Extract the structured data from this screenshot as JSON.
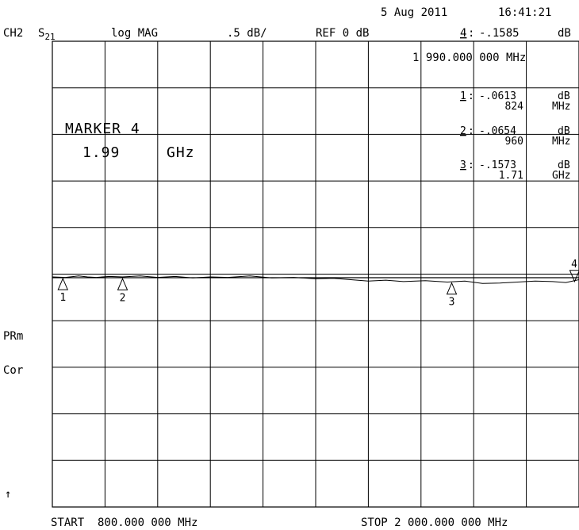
{
  "header": {
    "date": "5 Aug 2011",
    "time": "16:41:21",
    "channel": "CH2",
    "param_letter": "S",
    "param_sub": "21",
    "format": "log MAG",
    "scale": ".5 dB/",
    "ref": "REF 0 dB",
    "active_marker_num": "4",
    "active_marker_value": "-.1585",
    "active_marker_unit": "dB",
    "active_marker_freq": "1 990.000 000 MHz"
  },
  "marker_readouts": [
    {
      "num": "1",
      "value": "-.0613",
      "value_unit": "dB",
      "freq": "824",
      "freq_unit": "MHz"
    },
    {
      "num": "2",
      "value": "-.0654",
      "value_unit": "dB",
      "freq": "960",
      "freq_unit": "MHz"
    },
    {
      "num": "3",
      "value": "-.1573",
      "value_unit": "dB",
      "freq": "1.71",
      "freq_unit": "GHz"
    }
  ],
  "marker_box": {
    "title": "MARKER 4",
    "value": "1.99",
    "unit": "GHz"
  },
  "annotations": {
    "prm": "PRm",
    "cor": "Cor",
    "arrow": "↑"
  },
  "footer": {
    "start": "START  800.000 000 MHz",
    "stop": "STOP 2 000.000 000 MHz"
  },
  "chart_data": {
    "type": "line",
    "xlim": [
      800,
      2000
    ],
    "ylim": [
      -5,
      5
    ],
    "x_unit": "MHz",
    "y_unit": "dB",
    "grid": true,
    "reference_level": 0,
    "series": [
      {
        "x": [
          800,
          830,
          860,
          880,
          900,
          930,
          960,
          1000,
          1040,
          1080,
          1120,
          1160,
          1200,
          1250,
          1300,
          1350,
          1400,
          1440,
          1480,
          1520,
          1560,
          1600,
          1650,
          1700,
          1740,
          1780,
          1820,
          1860,
          1900,
          1940,
          1970,
          2000
        ],
        "y": [
          -0.06,
          -0.07,
          -0.04,
          -0.06,
          -0.07,
          -0.05,
          -0.06,
          -0.04,
          -0.07,
          -0.05,
          -0.08,
          -0.06,
          -0.07,
          -0.04,
          -0.08,
          -0.07,
          -0.1,
          -0.09,
          -0.12,
          -0.15,
          -0.13,
          -0.16,
          -0.14,
          -0.17,
          -0.15,
          -0.2,
          -0.19,
          -0.17,
          -0.15,
          -0.16,
          -0.18,
          -0.12
        ]
      }
    ],
    "markers": [
      {
        "label": "1",
        "x": 824,
        "y": -0.0613,
        "direction": "up"
      },
      {
        "label": "2",
        "x": 960,
        "y": -0.0654,
        "direction": "up"
      },
      {
        "label": "3",
        "x": 1710,
        "y": -0.1573,
        "direction": "up"
      },
      {
        "label": "4",
        "x": 1990,
        "y": -0.1585,
        "direction": "down"
      }
    ]
  }
}
